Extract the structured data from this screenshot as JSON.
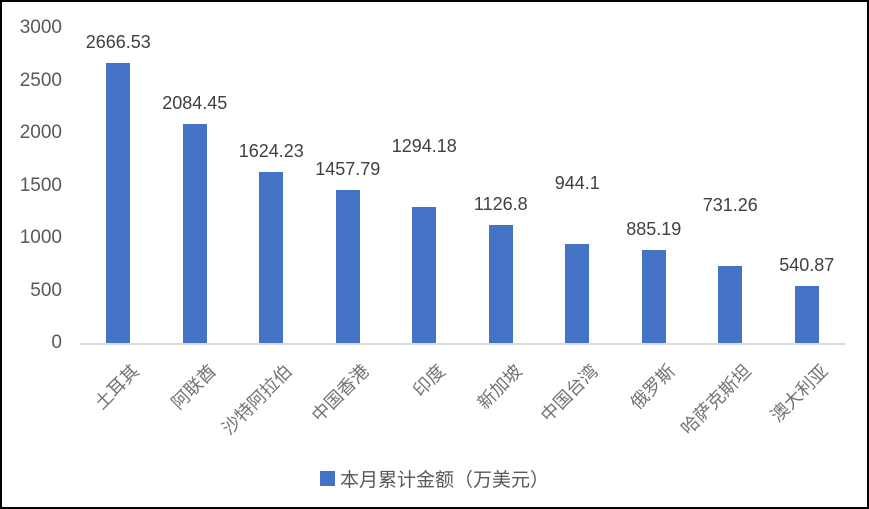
{
  "chart_data": {
    "type": "bar",
    "categories": [
      "土耳其",
      "阿联酋",
      "沙特阿拉伯",
      "中国香港",
      "印度",
      "新加坡",
      "中国台湾",
      "俄罗斯",
      "哈萨克斯坦",
      "澳大利亚"
    ],
    "values": [
      2666.53,
      2084.45,
      1624.23,
      1457.79,
      1294.18,
      1126.8,
      944.1,
      885.19,
      731.26,
      540.87
    ],
    "title": "",
    "xlabel": "",
    "ylabel": "",
    "ylim": [
      0,
      3000
    ],
    "yticks": [
      0,
      500,
      1000,
      1500,
      2000,
      2500,
      3000
    ],
    "grid": false,
    "data_labels": true,
    "raised_label_indices": [
      4,
      6,
      8
    ],
    "legend_position": "bottom",
    "legend": [
      {
        "label": "本月累计金额（万美元）",
        "color": "#4472C4"
      }
    ],
    "bar_color": "#4472C4",
    "axis_line_color": "#D9D9D9",
    "x_tick_rotation_deg": 45
  },
  "colors": {
    "frame": "#000000",
    "background": "#FFFFFF",
    "value_label_text": "#404040",
    "y_tick_text": "#595959",
    "x_tick_text": "#737373",
    "legend_text": "#595959"
  }
}
